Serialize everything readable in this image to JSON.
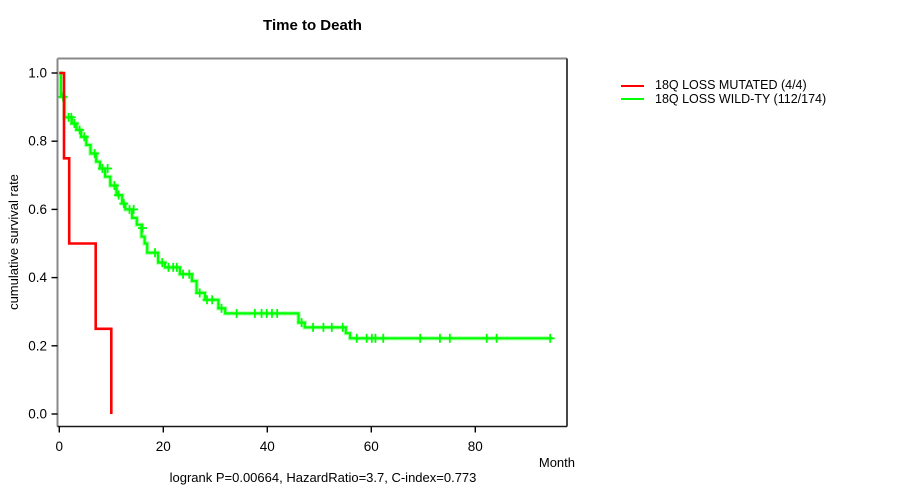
{
  "caption": "logrank P=0.00664, HazardRatio=3.7, C-index=0.773",
  "chart_data": {
    "type": "line",
    "subtype": "kaplan-meier-step",
    "title": "Time to Death",
    "xlabel": "Month",
    "ylabel": "cumulative survival rate",
    "x_ticks": [
      0,
      20,
      40,
      60,
      80
    ],
    "y_ticks": [
      0.0,
      0.2,
      0.4,
      0.6,
      0.8,
      1.0
    ],
    "xlim": [
      0,
      97
    ],
    "ylim": [
      0,
      1
    ],
    "grid": false,
    "legend_position": "right-outside",
    "stats": {
      "logrank_p": "0.00664",
      "hazard_ratio": "3.7",
      "c_index": "0.773"
    },
    "series": [
      {
        "name": "18Q LOSS MUTATED (4/4)",
        "color": "#ff0000",
        "steps": [
          [
            0,
            1.0
          ],
          [
            0.9,
            0.75
          ],
          [
            1.9,
            0.5
          ],
          [
            7.0,
            0.25
          ],
          [
            10.0,
            0.0
          ]
        ],
        "end_month": 10.0,
        "censors": []
      },
      {
        "name": "18Q LOSS WILD-TY (112/174)",
        "color": "#00ff00",
        "steps": [
          [
            0,
            1.0
          ],
          [
            0.3,
            0.93
          ],
          [
            1.0,
            0.87
          ],
          [
            2.4,
            0.852
          ],
          [
            3.3,
            0.833
          ],
          [
            4.2,
            0.813
          ],
          [
            5.2,
            0.789
          ],
          [
            6.0,
            0.764
          ],
          [
            7.1,
            0.74
          ],
          [
            7.8,
            0.72
          ],
          [
            8.8,
            0.696
          ],
          [
            9.8,
            0.67
          ],
          [
            11.0,
            0.642
          ],
          [
            12.1,
            0.617
          ],
          [
            12.7,
            0.6
          ],
          [
            14.0,
            0.575
          ],
          [
            14.9,
            0.555
          ],
          [
            15.8,
            0.52
          ],
          [
            16.4,
            0.5
          ],
          [
            16.9,
            0.473
          ],
          [
            19.0,
            0.444
          ],
          [
            20.3,
            0.43
          ],
          [
            23.2,
            0.41
          ],
          [
            25.5,
            0.39
          ],
          [
            26.4,
            0.355
          ],
          [
            28.0,
            0.335
          ],
          [
            30.6,
            0.31
          ],
          [
            31.9,
            0.295
          ],
          [
            46.0,
            0.268
          ],
          [
            47.2,
            0.254
          ],
          [
            55.1,
            0.237
          ],
          [
            55.9,
            0.222
          ]
        ],
        "end_month": 94.8,
        "censors": [
          [
            0.7,
            0.93
          ],
          [
            1.8,
            0.87
          ],
          [
            2.3,
            0.87
          ],
          [
            2.9,
            0.852
          ],
          [
            3.9,
            0.833
          ],
          [
            4.8,
            0.813
          ],
          [
            6.8,
            0.764
          ],
          [
            8.3,
            0.72
          ],
          [
            9.3,
            0.72
          ],
          [
            10.6,
            0.67
          ],
          [
            11.4,
            0.642
          ],
          [
            12.4,
            0.617
          ],
          [
            13.5,
            0.6
          ],
          [
            14.3,
            0.6
          ],
          [
            16.0,
            0.545
          ],
          [
            18.4,
            0.473
          ],
          [
            19.8,
            0.444
          ],
          [
            21.0,
            0.43
          ],
          [
            21.9,
            0.43
          ],
          [
            22.6,
            0.43
          ],
          [
            23.8,
            0.41
          ],
          [
            25.0,
            0.41
          ],
          [
            27.0,
            0.355
          ],
          [
            28.4,
            0.335
          ],
          [
            29.4,
            0.335
          ],
          [
            31.2,
            0.31
          ],
          [
            34.1,
            0.295
          ],
          [
            37.6,
            0.295
          ],
          [
            38.9,
            0.295
          ],
          [
            39.9,
            0.295
          ],
          [
            40.9,
            0.295
          ],
          [
            41.9,
            0.295
          ],
          [
            46.6,
            0.268
          ],
          [
            48.8,
            0.254
          ],
          [
            50.8,
            0.254
          ],
          [
            52.4,
            0.254
          ],
          [
            54.5,
            0.254
          ],
          [
            57.2,
            0.222
          ],
          [
            59.1,
            0.222
          ],
          [
            60.1,
            0.222
          ],
          [
            60.8,
            0.222
          ],
          [
            62.3,
            0.222
          ],
          [
            69.4,
            0.222
          ],
          [
            73.2,
            0.222
          ],
          [
            75.1,
            0.222
          ],
          [
            82.2,
            0.222
          ],
          [
            84.1,
            0.222
          ],
          [
            94.4,
            0.222
          ]
        ]
      }
    ]
  }
}
